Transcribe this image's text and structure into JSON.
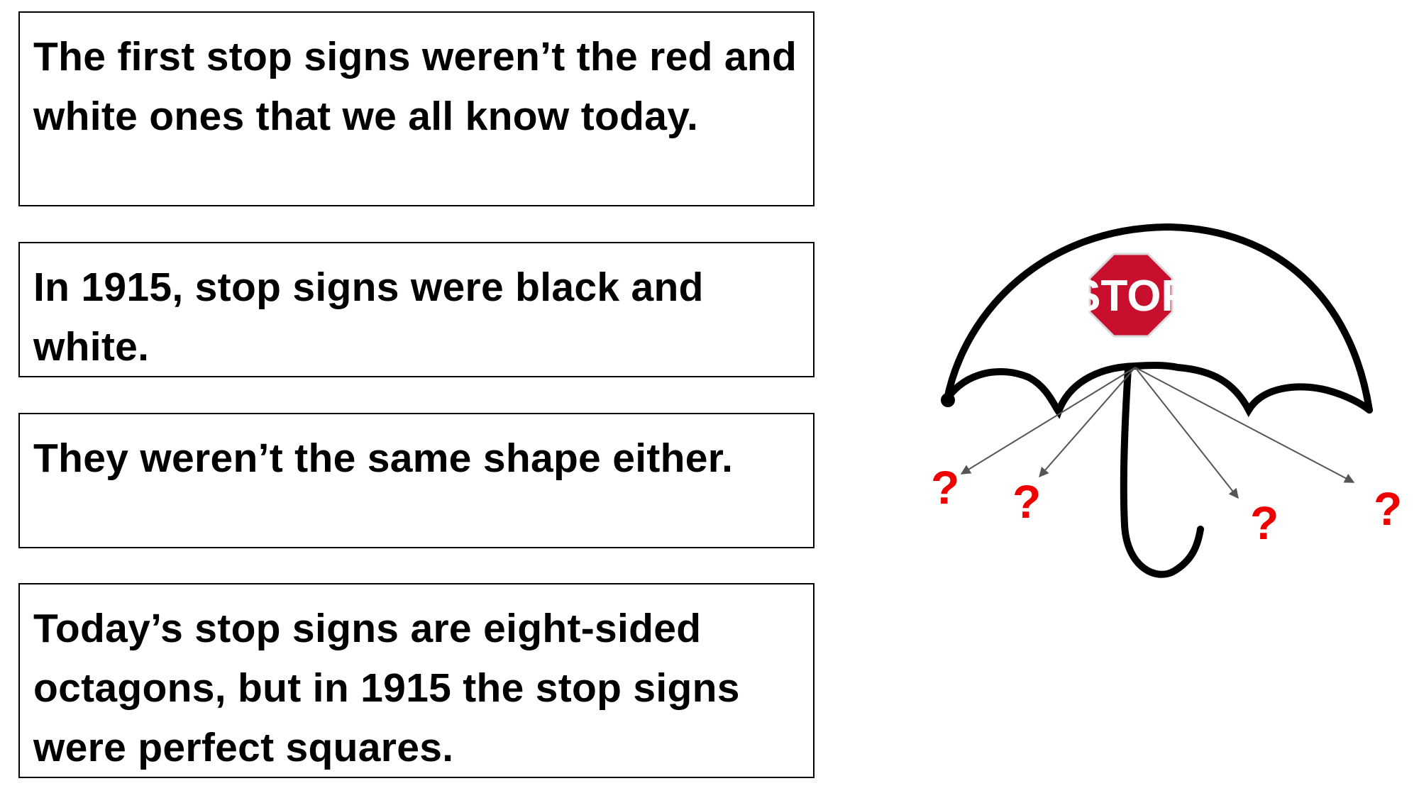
{
  "facts": [
    "The first stop signs weren’t the red and white ones that we all know today.",
    "In 1915, stop signs were black and white.",
    "They weren’t the same shape either.",
    "Today’s stop signs are eight-sided octagons, but in 1915 the stop signs were perfect squares."
  ],
  "illustration": {
    "sign_text": "STOP",
    "question_marks": [
      "?",
      "?",
      "?",
      "?"
    ],
    "colors": {
      "sign": "#c8102e",
      "question": "#ee0000",
      "umbrella": "#000000",
      "arrows": "#555555"
    }
  }
}
